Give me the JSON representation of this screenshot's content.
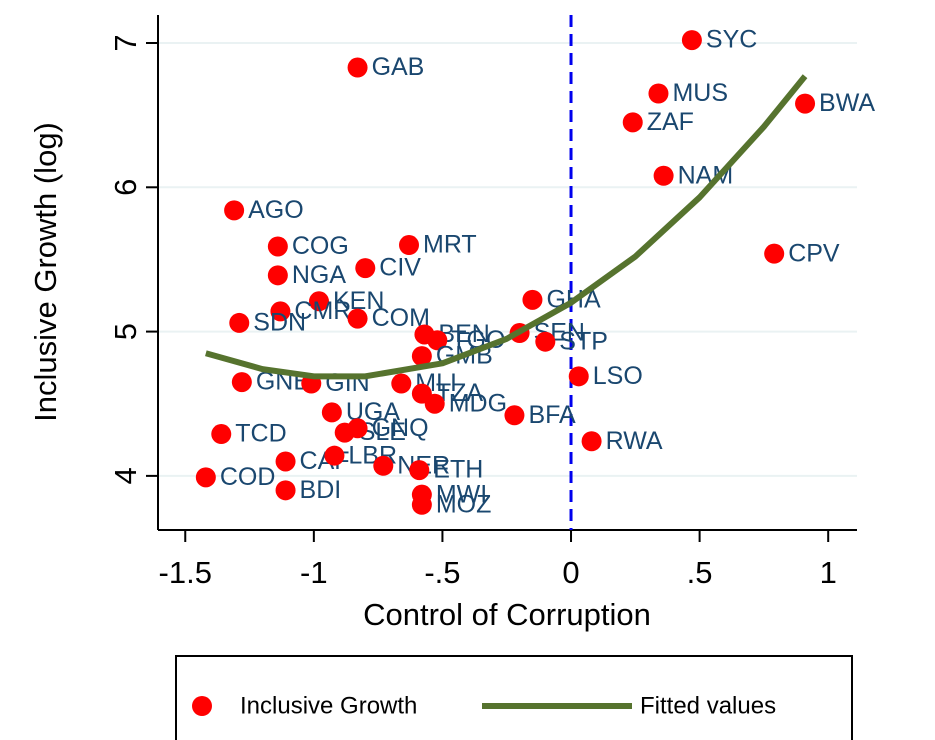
{
  "chart_data": {
    "type": "scatter",
    "x_label": "Control of Corruption",
    "y_label": "Inclusive Growth (log)",
    "xlim": [
      -1.606,
      1.112
    ],
    "ylim": [
      3.625,
      7.194
    ],
    "xticks": [
      {
        "value": -1.5,
        "label": "-1.5"
      },
      -1,
      {
        "value": -0.5,
        "label": "-.5"
      },
      0,
      {
        "value": 0.5,
        "label": ".5"
      },
      1
    ],
    "yticks": [
      4,
      5,
      6,
      7
    ],
    "grid": true,
    "reference_line_x": 0,
    "reference_line_color": "#0000ee",
    "legend_position": "bottom",
    "series": [
      {
        "name": "Inclusive Growth",
        "type": "scatter",
        "color": "#ff0000",
        "labels": [
          "SYC",
          "GAB",
          "MUS",
          "BWA",
          "ZAF",
          "NAM",
          "AGO",
          "COG",
          "MRT",
          "CPV",
          "CIV",
          "NGA",
          "GHA",
          "KEN",
          "CMR",
          "COM",
          "SDN",
          "BEN",
          "TGO",
          "SEN",
          "STP",
          "GMB",
          "GNB",
          "GIN",
          "MLI",
          "TZA",
          "MDG",
          "LSO",
          "BFA",
          "UGA",
          "SLE",
          "GNQ",
          "TCD",
          "RWA",
          "CAF",
          "LBR",
          "NER",
          "ETH",
          "COD",
          "BDI",
          "MWI",
          "MOZ"
        ],
        "x": [
          0.47,
          -0.83,
          0.34,
          0.91,
          0.24,
          0.36,
          -1.31,
          -1.14,
          -0.63,
          0.79,
          -0.8,
          -1.14,
          -0.15,
          -0.98,
          -1.13,
          -0.83,
          -1.29,
          -0.57,
          -0.52,
          -0.2,
          -0.1,
          -0.58,
          -1.28,
          -1.01,
          -0.66,
          -0.58,
          -0.53,
          0.03,
          -0.22,
          -0.93,
          -0.88,
          -0.83,
          -1.36,
          0.08,
          -1.11,
          -0.92,
          -0.73,
          -0.59,
          -1.42,
          -1.11,
          -0.58,
          -0.58
        ],
        "y": [
          7.02,
          6.83,
          6.65,
          6.58,
          6.45,
          6.08,
          5.84,
          5.59,
          5.6,
          5.54,
          5.44,
          5.39,
          5.22,
          5.21,
          5.14,
          5.09,
          5.06,
          4.98,
          4.94,
          4.99,
          4.93,
          4.83,
          4.65,
          4.64,
          4.64,
          4.57,
          4.5,
          4.69,
          4.42,
          4.44,
          4.3,
          4.33,
          4.29,
          4.24,
          4.1,
          4.14,
          4.07,
          4.04,
          3.99,
          3.9,
          3.87,
          3.8
        ]
      },
      {
        "name": "Fitted values",
        "type": "line",
        "color": "#56732e",
        "x": [
          -1.42,
          -1.2,
          -1,
          -0.8,
          -0.5,
          -0.25,
          0,
          0.25,
          0.5,
          0.75,
          0.91
        ],
        "y": [
          4.85,
          4.74,
          4.69,
          4.69,
          4.78,
          4.95,
          5.2,
          5.52,
          5.93,
          6.42,
          6.77
        ]
      }
    ]
  }
}
